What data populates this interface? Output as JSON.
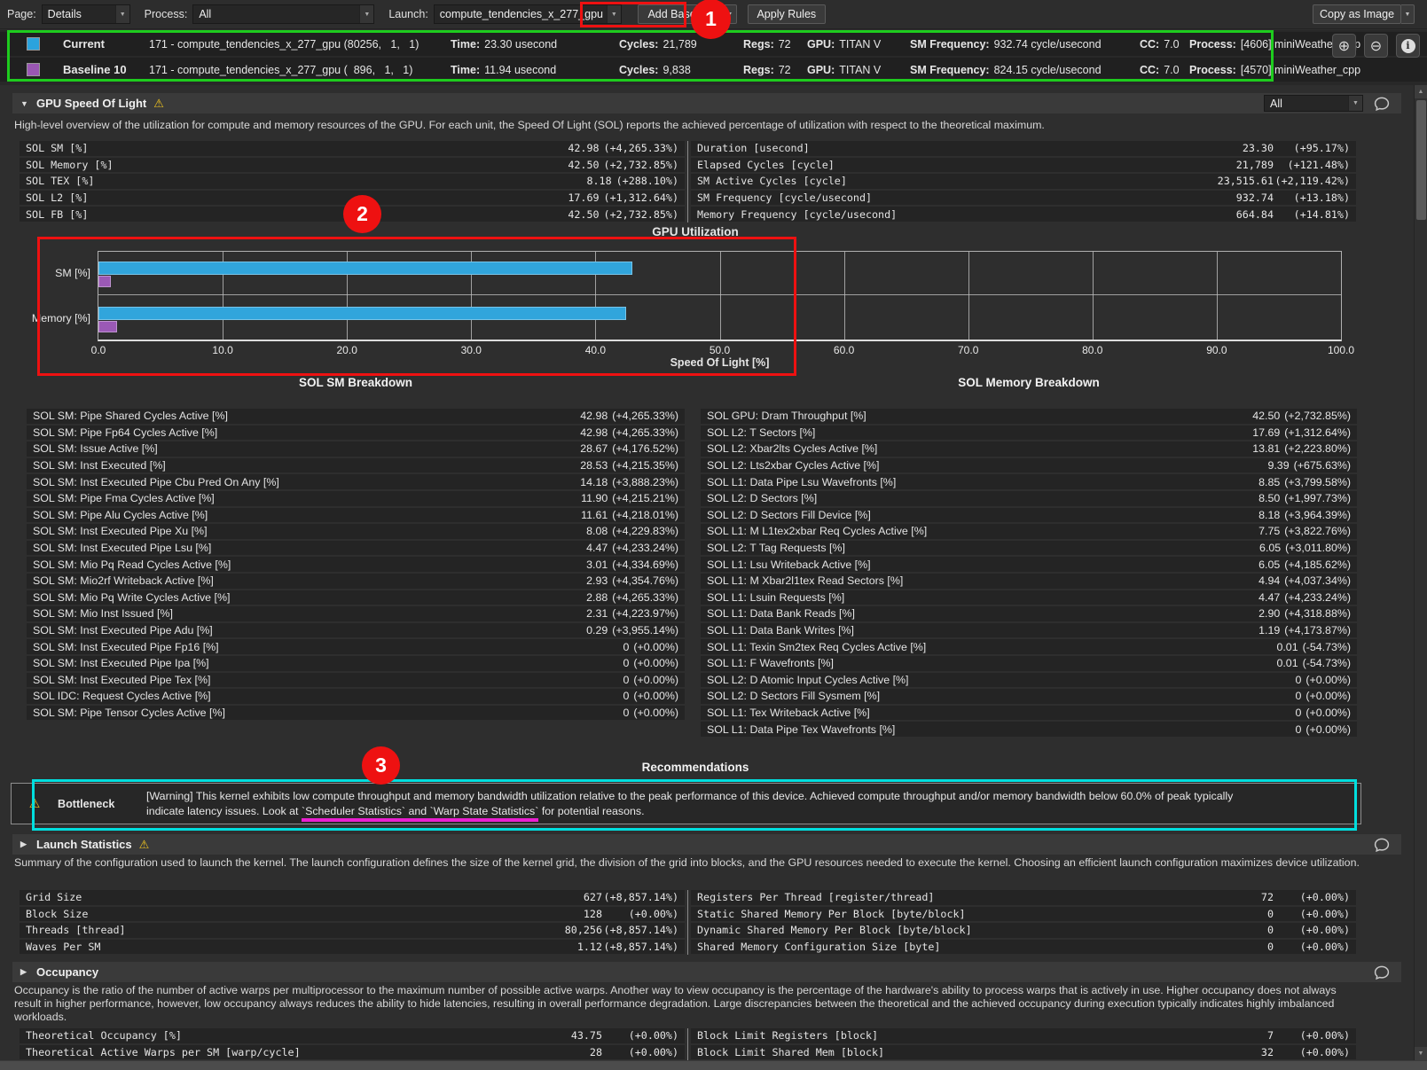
{
  "toolbar": {
    "page_label": "Page:",
    "page_value": "Details",
    "process_label": "Process:",
    "process_value": "All",
    "launch_label": "Launch:",
    "launch_value": "compute_tendencies_x_277_gpu",
    "add_baseline": "Add Baseline",
    "apply_rules": "Apply Rules",
    "copy_as_image": "Copy as Image"
  },
  "baselines": {
    "rows": [
      {
        "name": "Current",
        "swatch": "#2ba3dd",
        "kernel": "171 - compute_tendencies_x_277_gpu (80256,   1,   1)",
        "time_label": "Time:",
        "time": "23.30 usecond",
        "cycles_label": "Cycles:",
        "cycles": "21,789",
        "regs_label": "Regs:",
        "regs": "72",
        "gpu_label": "GPU:",
        "gpu": "TITAN V",
        "smfreq_label": "SM Frequency:",
        "smfreq": "932.74 cycle/usecond",
        "cc_label": "CC:",
        "cc": "7.0",
        "process_label": "Process:",
        "process": "[4606] miniWeather_cpp"
      },
      {
        "name": "Baseline 10",
        "swatch": "#9a57b3",
        "kernel": "171 - compute_tendencies_x_277_gpu (  896,   1,   1)",
        "time_label": "Time:",
        "time": "11.94 usecond",
        "cycles_label": "Cycles:",
        "cycles": "9,838",
        "regs_label": "Regs:",
        "regs": "72",
        "gpu_label": "GPU:",
        "gpu": "TITAN V",
        "smfreq_label": "SM Frequency:",
        "smfreq": "824.15 cycle/usecond",
        "cc_label": "CC:",
        "cc": "7.0",
        "process_label": "Process:",
        "process": "[4570] miniWeather_cpp"
      }
    ]
  },
  "sol": {
    "title": "GPU Speed Of Light",
    "filter": "All",
    "description": "High-level overview of the utilization for compute and memory resources of the GPU. For each unit, the Speed Of Light (SOL) reports the achieved percentage of utilization with respect to the theoretical maximum.",
    "left_rows": [
      [
        "SOL SM [%]",
        "42.98",
        "(+4,265.33%)"
      ],
      [
        "SOL Memory [%]",
        "42.50",
        "(+2,732.85%)"
      ],
      [
        "SOL TEX [%]",
        "8.18",
        "(+288.10%)"
      ],
      [
        "SOL L2 [%]",
        "17.69",
        "(+1,312.64%)"
      ],
      [
        "SOL FB [%]",
        "42.50",
        "(+2,732.85%)"
      ]
    ],
    "right_rows": [
      [
        "Duration [usecond]",
        "23.30",
        "(+95.17%)"
      ],
      [
        "Elapsed Cycles [cycle]",
        "21,789",
        "(+121.48%)"
      ],
      [
        "SM Active Cycles [cycle]",
        "23,515.61",
        "(+2,119.42%)"
      ],
      [
        "SM Frequency [cycle/usecond]",
        "932.74",
        "(+13.18%)"
      ],
      [
        "Memory Frequency [cycle/usecond]",
        "664.84",
        "(+14.81%)"
      ]
    ]
  },
  "chart_data": {
    "type": "bar",
    "orientation": "horizontal",
    "title": "GPU Utilization",
    "xlabel": "Speed Of Light [%]",
    "categories": [
      "SM [%]",
      "Memory [%]"
    ],
    "series": [
      {
        "name": "Current",
        "color": "#31a5dc",
        "values": [
          42.98,
          42.5
        ]
      },
      {
        "name": "Baseline 10",
        "color": "#9b59b6",
        "values": [
          0.98,
          1.5
        ]
      }
    ],
    "xlim": [
      0,
      100
    ],
    "ticks": [
      0,
      10,
      20,
      30,
      40,
      50,
      60,
      70,
      80,
      90,
      100
    ],
    "grid": true,
    "legend": "none"
  },
  "sm_breakdown": {
    "title": "SOL SM Breakdown",
    "rows": [
      [
        "SOL SM: Pipe Shared Cycles Active [%]",
        "42.98",
        "(+4,265.33%)"
      ],
      [
        "SOL SM: Pipe Fp64 Cycles Active [%]",
        "42.98",
        "(+4,265.33%)"
      ],
      [
        "SOL SM: Issue Active [%]",
        "28.67",
        "(+4,176.52%)"
      ],
      [
        "SOL SM: Inst Executed [%]",
        "28.53",
        "(+4,215.35%)"
      ],
      [
        "SOL SM: Inst Executed Pipe Cbu Pred On Any [%]",
        "14.18",
        "(+3,888.23%)"
      ],
      [
        "SOL SM: Pipe Fma Cycles Active [%]",
        "11.90",
        "(+4,215.21%)"
      ],
      [
        "SOL SM: Pipe Alu Cycles Active [%]",
        "11.61",
        "(+4,218.01%)"
      ],
      [
        "SOL SM: Inst Executed Pipe Xu [%]",
        "8.08",
        "(+4,229.83%)"
      ],
      [
        "SOL SM: Inst Executed Pipe Lsu [%]",
        "4.47",
        "(+4,233.24%)"
      ],
      [
        "SOL SM: Mio Pq Read Cycles Active [%]",
        "3.01",
        "(+4,334.69%)"
      ],
      [
        "SOL SM: Mio2rf Writeback Active [%]",
        "2.93",
        "(+4,354.76%)"
      ],
      [
        "SOL SM: Mio Pq Write Cycles Active [%]",
        "2.88",
        "(+4,265.33%)"
      ],
      [
        "SOL SM: Mio Inst Issued [%]",
        "2.31",
        "(+4,223.97%)"
      ],
      [
        "SOL SM: Inst Executed Pipe Adu [%]",
        "0.29",
        "(+3,955.14%)"
      ],
      [
        "SOL SM: Inst Executed Pipe Fp16 [%]",
        "0",
        "(+0.00%)"
      ],
      [
        "SOL SM: Inst Executed Pipe Ipa [%]",
        "0",
        "(+0.00%)"
      ],
      [
        "SOL SM: Inst Executed Pipe Tex [%]",
        "0",
        "(+0.00%)"
      ],
      [
        "SOL IDC: Request Cycles Active [%]",
        "0",
        "(+0.00%)"
      ],
      [
        "SOL SM: Pipe Tensor Cycles Active [%]",
        "0",
        "(+0.00%)"
      ]
    ]
  },
  "mem_breakdown": {
    "title": "SOL Memory Breakdown",
    "rows": [
      [
        "SOL GPU: Dram Throughput [%]",
        "42.50",
        "(+2,732.85%)"
      ],
      [
        "SOL L2: T Sectors [%]",
        "17.69",
        "(+1,312.64%)"
      ],
      [
        "SOL L2: Xbar2lts Cycles Active [%]",
        "13.81",
        "(+2,223.80%)"
      ],
      [
        "SOL L2: Lts2xbar Cycles Active [%]",
        "9.39",
        "(+675.63%)"
      ],
      [
        "SOL L1: Data Pipe Lsu Wavefronts [%]",
        "8.85",
        "(+3,799.58%)"
      ],
      [
        "SOL L2: D Sectors [%]",
        "8.50",
        "(+1,997.73%)"
      ],
      [
        "SOL L2: D Sectors Fill Device [%]",
        "8.18",
        "(+3,964.39%)"
      ],
      [
        "SOL L1: M L1tex2xbar Req Cycles Active [%]",
        "7.75",
        "(+3,822.76%)"
      ],
      [
        "SOL L2: T Tag Requests [%]",
        "6.05",
        "(+3,011.80%)"
      ],
      [
        "SOL L1: Lsu Writeback Active [%]",
        "6.05",
        "(+4,185.62%)"
      ],
      [
        "SOL L1: M Xbar2l1tex Read Sectors [%]",
        "4.94",
        "(+4,037.34%)"
      ],
      [
        "SOL L1: Lsuin Requests [%]",
        "4.47",
        "(+4,233.24%)"
      ],
      [
        "SOL L1: Data Bank Reads [%]",
        "2.90",
        "(+4,318.88%)"
      ],
      [
        "SOL L1: Data Bank Writes [%]",
        "1.19",
        "(+4,173.87%)"
      ],
      [
        "SOL L1: Texin Sm2tex Req Cycles Active [%]",
        "0.01",
        "(-54.73%)"
      ],
      [
        "SOL L1: F Wavefronts [%]",
        "0.01",
        "(-54.73%)"
      ],
      [
        "SOL L2: D Atomic Input Cycles Active [%]",
        "0",
        "(+0.00%)"
      ],
      [
        "SOL L2: D Sectors Fill Sysmem [%]",
        "0",
        "(+0.00%)"
      ],
      [
        "SOL L1: Tex Writeback Active [%]",
        "0",
        "(+0.00%)"
      ],
      [
        "SOL L1: Data Pipe Tex Wavefronts [%]",
        "0",
        "(+0.00%)"
      ]
    ]
  },
  "recommendations": {
    "title": "Recommendations",
    "rule_name": "Bottleneck",
    "line1": "[Warning] This kernel exhibits low compute throughput and memory bandwidth utilization relative to the peak performance of this device. Achieved compute throughput and/or memory bandwidth below 60.0% of peak typically",
    "line2_pre": "indicate latency issues. Look at ",
    "line2_marked": "`Scheduler Statistics` and `Warp State Statistics`",
    "line2_post": " for potential reasons."
  },
  "launch_stats": {
    "title": "Launch Statistics",
    "description": "Summary of the configuration used to launch the kernel. The launch configuration defines the size of the kernel grid, the division of the grid into blocks, and the GPU resources needed to execute the kernel. Choosing an efficient launch configuration maximizes device utilization.",
    "left_rows": [
      [
        "Grid Size",
        "627",
        "(+8,857.14%)"
      ],
      [
        "Block Size",
        "128",
        "(+0.00%)"
      ],
      [
        "Threads [thread]",
        "80,256",
        "(+8,857.14%)"
      ],
      [
        "Waves Per SM",
        "1.12",
        "(+8,857.14%)"
      ]
    ],
    "right_rows": [
      [
        "Registers Per Thread [register/thread]",
        "72",
        "(+0.00%)"
      ],
      [
        "Static Shared Memory Per Block [byte/block]",
        "0",
        "(+0.00%)"
      ],
      [
        "Dynamic Shared Memory Per Block [byte/block]",
        "0",
        "(+0.00%)"
      ],
      [
        "Shared Memory Configuration Size [byte]",
        "0",
        "(+0.00%)"
      ]
    ]
  },
  "occupancy": {
    "title": "Occupancy",
    "description": "Occupancy is the ratio of the number of active warps per multiprocessor to the maximum number of possible active warps. Another way to view occupancy is the percentage of the hardware's ability to process warps that is actively in use. Higher occupancy does not always result in higher performance, however, low occupancy always reduces the ability to hide latencies, resulting in overall performance degradation. Large discrepancies between the theoretical and the achieved occupancy during execution typically indicates highly imbalanced workloads.",
    "left_rows": [
      [
        "Theoretical Occupancy [%]",
        "43.75",
        "(+0.00%)"
      ],
      [
        "Theoretical Active Warps per SM [warp/cycle]",
        "28",
        "(+0.00%)"
      ]
    ],
    "right_rows": [
      [
        "Block Limit Registers [block]",
        "7",
        "(+0.00%)"
      ],
      [
        "Block Limit Shared Mem [block]",
        "32",
        "(+0.00%)"
      ]
    ]
  },
  "annotations": {
    "badge1": "1",
    "badge2": "2",
    "badge3": "3"
  },
  "icons": {
    "warning": "⚠",
    "expanded": "▼",
    "collapsed": "▶",
    "combo_arrow": "▼",
    "zoom_in": "⊕",
    "zoom_out": "⊖",
    "info": "i",
    "scroll_up": "▲",
    "scroll_down": "▼"
  },
  "colors": {
    "annotation_red": "#ee1111",
    "annotation_green": "#1ecc1e",
    "annotation_cyan": "#00dede",
    "annotation_magenta": "#ea1fd0"
  }
}
